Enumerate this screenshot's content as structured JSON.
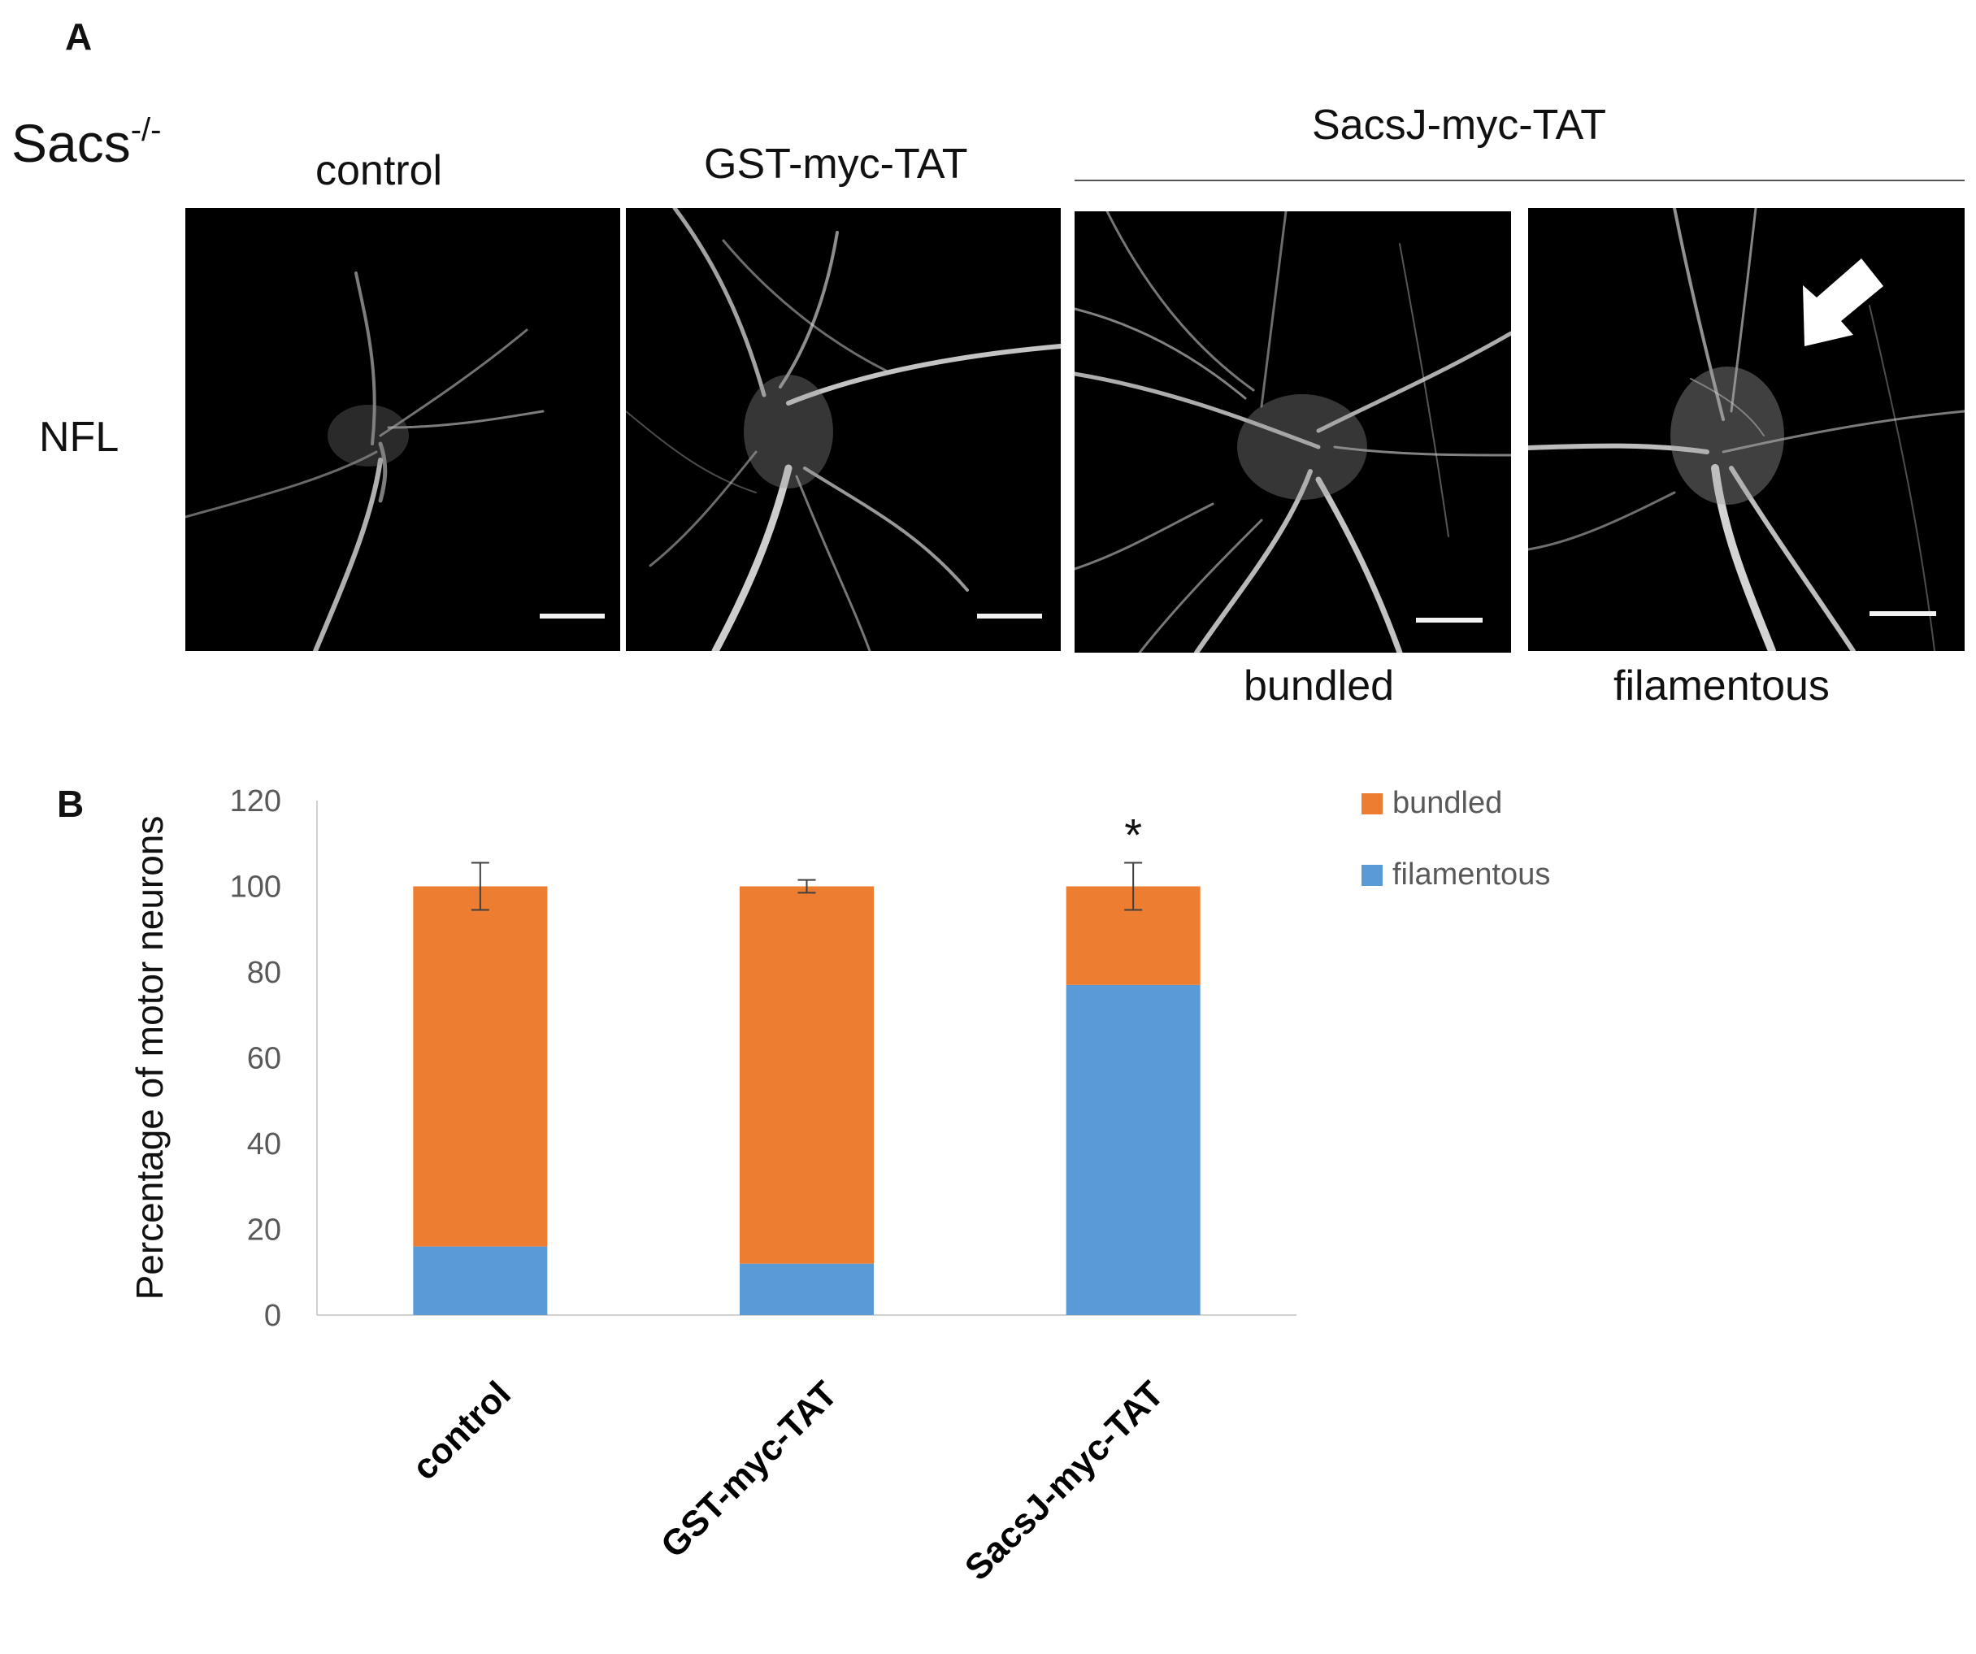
{
  "panel_a": {
    "letter": "A",
    "genotype_base": "Sacs",
    "genotype_sup": "-/-",
    "row_label": "NFL",
    "column_labels": [
      "control",
      "GST-myc-TAT"
    ],
    "group_label": "SacsJ-myc-TAT",
    "sub_labels": [
      "bundled",
      "filamentous"
    ]
  },
  "panel_b": {
    "letter": "B",
    "significance": "*"
  },
  "colors": {
    "bundled": "#ed7d31",
    "filamentous": "#5b9bd5"
  },
  "chart_data": {
    "type": "bar",
    "stacked": true,
    "categories": [
      "control",
      "GST-myc-TAT",
      "SacsJ-myc-TAT"
    ],
    "series": [
      {
        "name": "filamentous",
        "values": [
          16,
          12,
          77
        ]
      },
      {
        "name": "bundled",
        "values": [
          84,
          88,
          23
        ]
      }
    ],
    "error_bars": [
      5.5,
      1.5,
      5.5
    ],
    "ylabel": "Percentage of motor neurons",
    "xlabel": "",
    "ylim": [
      0,
      120
    ],
    "yticks": [
      0,
      20,
      40,
      60,
      80,
      100,
      120
    ],
    "legend": [
      "bundled",
      "filamentous"
    ],
    "legend_position": "top-right",
    "grid": false,
    "annotations": [
      {
        "category": "SacsJ-myc-TAT",
        "text": "*"
      }
    ]
  }
}
